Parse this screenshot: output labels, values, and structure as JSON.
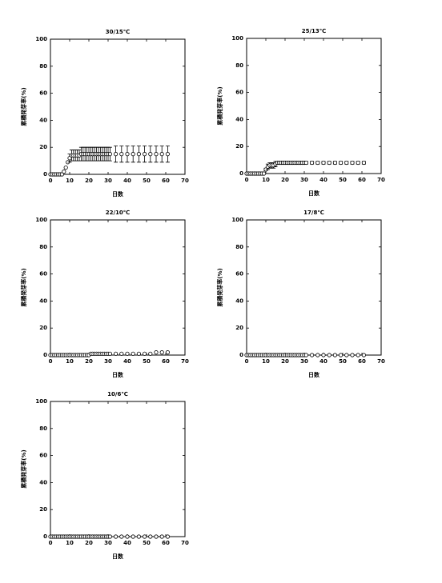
{
  "chart_data": [
    {
      "type": "scatter",
      "title": "30/15℃",
      "xlabel": "日数",
      "ylabel": "累積発芽率(%)",
      "x": [
        0,
        1,
        2,
        3,
        4,
        5,
        6,
        7,
        8,
        9,
        10,
        11,
        12,
        13,
        14,
        15,
        16,
        17,
        18,
        19,
        20,
        21,
        22,
        23,
        24,
        25,
        26,
        27,
        28,
        29,
        30,
        31,
        34,
        37,
        40,
        43,
        46,
        49,
        52,
        55,
        58,
        61
      ],
      "values": [
        0,
        0,
        0,
        0,
        0,
        0,
        0,
        2,
        5,
        9,
        12,
        14,
        14,
        14,
        14,
        14,
        15,
        15,
        15,
        15,
        15,
        15,
        15,
        15,
        15,
        15,
        15,
        15,
        15,
        15,
        15,
        15,
        15,
        15,
        15,
        15,
        15,
        15,
        15,
        15,
        15,
        15
      ],
      "errors": [
        0,
        0,
        0,
        0,
        0,
        0,
        0,
        0,
        0,
        0,
        3,
        4,
        4,
        4,
        4,
        4,
        5,
        5,
        5,
        5,
        5,
        5,
        5,
        5,
        5,
        5,
        5,
        5,
        5,
        5,
        5,
        5,
        6,
        6,
        6,
        6,
        6,
        6,
        6,
        6,
        6,
        6
      ],
      "xlim": [
        0,
        70
      ],
      "ylim": [
        0,
        100
      ],
      "xticks": [
        0,
        10,
        20,
        30,
        40,
        50,
        60,
        70
      ],
      "yticks": [
        0,
        20,
        40,
        60,
        80,
        100
      ]
    },
    {
      "type": "scatter",
      "title": "25/13℃",
      "xlabel": "日数",
      "ylabel": "累積発芽率(%)",
      "x": [
        0,
        1,
        2,
        3,
        4,
        5,
        6,
        7,
        8,
        9,
        10,
        11,
        12,
        13,
        14,
        15,
        16,
        17,
        18,
        19,
        20,
        21,
        22,
        23,
        24,
        25,
        26,
        27,
        28,
        29,
        30,
        31,
        34,
        37,
        40,
        43,
        46,
        49,
        52,
        55,
        58,
        61
      ],
      "values": [
        0,
        0,
        0,
        0,
        0,
        0,
        0,
        0,
        0,
        0,
        3,
        5,
        6,
        6,
        6,
        7,
        8,
        8,
        8,
        8,
        8,
        8,
        8,
        8,
        8,
        8,
        8,
        8,
        8,
        8,
        8,
        8,
        8,
        8,
        8,
        8,
        8,
        8,
        8,
        8,
        8,
        8
      ],
      "errors": [
        0,
        0,
        0,
        0,
        0,
        0,
        0,
        0,
        0,
        0,
        1,
        2,
        2,
        2,
        2,
        2,
        1,
        1,
        1,
        1,
        1,
        1,
        1,
        1,
        1,
        1,
        1,
        1,
        1,
        1,
        1,
        1,
        1,
        1,
        1,
        1,
        1,
        1,
        1,
        1,
        1,
        1
      ],
      "xlim": [
        0,
        70
      ],
      "ylim": [
        0,
        100
      ],
      "xticks": [
        0,
        10,
        20,
        30,
        40,
        50,
        60,
        70
      ],
      "yticks": [
        0,
        20,
        40,
        60,
        80,
        100
      ]
    },
    {
      "type": "scatter",
      "title": "22/10℃",
      "xlabel": "日数",
      "ylabel": "累積発芽率(%)",
      "x": [
        0,
        1,
        2,
        3,
        4,
        5,
        6,
        7,
        8,
        9,
        10,
        11,
        12,
        13,
        14,
        15,
        16,
        17,
        18,
        19,
        20,
        21,
        22,
        23,
        24,
        25,
        26,
        27,
        28,
        29,
        30,
        31,
        34,
        37,
        40,
        43,
        46,
        49,
        52,
        55,
        58,
        61
      ],
      "values": [
        0,
        0,
        0,
        0,
        0,
        0,
        0,
        0,
        0,
        0,
        0,
        0,
        0,
        0,
        0,
        0,
        0,
        0,
        0,
        0,
        0,
        1,
        1,
        1,
        1,
        1,
        1,
        1,
        1,
        1,
        1,
        1,
        1,
        1,
        1,
        1,
        1,
        1,
        1,
        2,
        2,
        2
      ],
      "xlim": [
        0,
        70
      ],
      "ylim": [
        0,
        100
      ],
      "xticks": [
        0,
        10,
        20,
        30,
        40,
        50,
        60,
        70
      ],
      "yticks": [
        0,
        20,
        40,
        60,
        80,
        100
      ]
    },
    {
      "type": "scatter",
      "title": "17/8℃",
      "xlabel": "日数",
      "ylabel": "累積発芽率(%)",
      "x": [
        0,
        1,
        2,
        3,
        4,
        5,
        6,
        7,
        8,
        9,
        10,
        11,
        12,
        13,
        14,
        15,
        16,
        17,
        18,
        19,
        20,
        21,
        22,
        23,
        24,
        25,
        26,
        27,
        28,
        29,
        30,
        31,
        34,
        37,
        40,
        43,
        46,
        49,
        52,
        55,
        58,
        61
      ],
      "values": [
        0,
        0,
        0,
        0,
        0,
        0,
        0,
        0,
        0,
        0,
        0,
        0,
        0,
        0,
        0,
        0,
        0,
        0,
        0,
        0,
        0,
        0,
        0,
        0,
        0,
        0,
        0,
        0,
        0,
        0,
        0,
        0,
        0,
        0,
        0,
        0,
        0,
        0,
        0,
        0,
        0,
        0
      ],
      "xlim": [
        0,
        70
      ],
      "ylim": [
        0,
        100
      ],
      "xticks": [
        0,
        10,
        20,
        30,
        40,
        50,
        60,
        70
      ],
      "yticks": [
        0,
        20,
        40,
        60,
        80,
        100
      ]
    },
    {
      "type": "scatter",
      "title": "10/6℃",
      "xlabel": "日数",
      "ylabel": "累積発芽率(%)",
      "x": [
        0,
        1,
        2,
        3,
        4,
        5,
        6,
        7,
        8,
        9,
        10,
        11,
        12,
        13,
        14,
        15,
        16,
        17,
        18,
        19,
        20,
        21,
        22,
        23,
        24,
        25,
        26,
        27,
        28,
        29,
        30,
        31,
        34,
        37,
        40,
        43,
        46,
        49,
        52,
        55,
        58,
        61
      ],
      "values": [
        0,
        0,
        0,
        0,
        0,
        0,
        0,
        0,
        0,
        0,
        0,
        0,
        0,
        0,
        0,
        0,
        0,
        0,
        0,
        0,
        0,
        0,
        0,
        0,
        0,
        0,
        0,
        0,
        0,
        0,
        0,
        0,
        0,
        0,
        0,
        0,
        0,
        0,
        0,
        0,
        0,
        0
      ],
      "xlim": [
        0,
        70
      ],
      "ylim": [
        0,
        100
      ],
      "xticks": [
        0,
        10,
        20,
        30,
        40,
        50,
        60,
        70
      ],
      "yticks": [
        0,
        20,
        40,
        60,
        80,
        100
      ]
    }
  ]
}
